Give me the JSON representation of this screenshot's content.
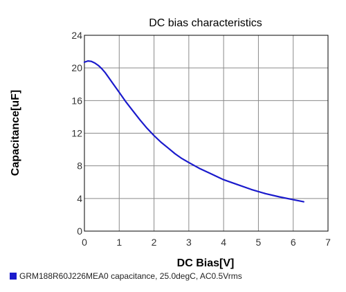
{
  "chart_data": {
    "type": "line",
    "title": "DC bias characteristics",
    "xlabel": "DC Bias[V]",
    "ylabel": "Capacitance[uF]",
    "xlim": [
      0,
      7
    ],
    "ylim": [
      0,
      24
    ],
    "x_ticks": [
      0,
      1,
      2,
      3,
      4,
      5,
      6,
      7
    ],
    "y_ticks": [
      0,
      4,
      8,
      12,
      16,
      20,
      24
    ],
    "grid": true,
    "legend_position": "bottom-left",
    "series": [
      {
        "name": "GRM188R60J226MEA0 capacitance, 25.0degC, AC0.5Vrms",
        "color": "#1a1acc",
        "x": [
          0,
          0.1,
          0.2,
          0.3,
          0.4,
          0.5,
          0.6,
          0.7,
          0.8,
          0.9,
          1.0,
          1.2,
          1.4,
          1.6,
          1.8,
          2.0,
          2.2,
          2.4,
          2.6,
          2.8,
          3.0,
          3.3,
          3.6,
          4.0,
          4.4,
          4.8,
          5.2,
          5.6,
          6.0,
          6.3
        ],
        "y": [
          20.7,
          20.85,
          20.8,
          20.6,
          20.3,
          19.9,
          19.4,
          18.8,
          18.2,
          17.6,
          17.0,
          15.8,
          14.7,
          13.6,
          12.6,
          11.7,
          10.9,
          10.2,
          9.5,
          8.9,
          8.4,
          7.7,
          7.1,
          6.3,
          5.7,
          5.1,
          4.6,
          4.2,
          3.85,
          3.6
        ]
      }
    ]
  }
}
